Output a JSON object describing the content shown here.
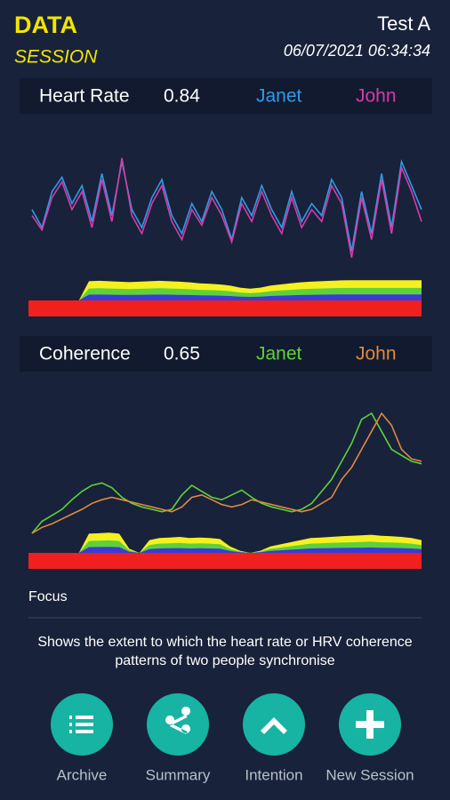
{
  "header": {
    "title": "DATA",
    "subtitle": "SESSION",
    "session": "Test A",
    "datetime": "06/07/2021 06:34:34"
  },
  "panels": [
    {
      "label": "Heart Rate",
      "score": 0.84,
      "series": [
        {
          "name": "Janet",
          "color": "#2f9be8",
          "values": [
            55,
            40,
            70,
            82,
            60,
            75,
            45,
            85,
            50,
            95,
            55,
            40,
            65,
            80,
            50,
            35,
            60,
            45,
            70,
            55,
            30,
            65,
            50,
            75,
            55,
            40,
            70,
            45,
            60,
            50,
            80,
            65,
            20,
            70,
            35,
            85,
            40,
            95,
            75,
            55
          ]
        },
        {
          "name": "John",
          "color": "#d63aa8",
          "values": [
            50,
            38,
            65,
            78,
            55,
            70,
            40,
            80,
            45,
            98,
            50,
            35,
            60,
            75,
            45,
            30,
            55,
            42,
            65,
            50,
            28,
            60,
            45,
            70,
            50,
            35,
            65,
            40,
            55,
            45,
            75,
            60,
            15,
            65,
            30,
            80,
            35,
            90,
            70,
            45
          ]
        }
      ],
      "sync": [
        0,
        0,
        0,
        0,
        0,
        0,
        90,
        92,
        90,
        88,
        86,
        88,
        90,
        92,
        90,
        88,
        85,
        80,
        78,
        75,
        70,
        60,
        55,
        60,
        70,
        75,
        80,
        85,
        88,
        90,
        92,
        94,
        95,
        95,
        95,
        95,
        95,
        95,
        95,
        95
      ]
    },
    {
      "label": "Coherence",
      "score": 0.65,
      "series": [
        {
          "name": "Janet",
          "color": "#5fd13a",
          "values": [
            0,
            10,
            15,
            20,
            28,
            35,
            40,
            42,
            38,
            30,
            25,
            22,
            20,
            18,
            20,
            32,
            40,
            35,
            30,
            28,
            32,
            36,
            30,
            25,
            22,
            20,
            18,
            20,
            25,
            35,
            45,
            60,
            75,
            95,
            100,
            85,
            70,
            65,
            60,
            58
          ]
        },
        {
          "name": "John",
          "color": "#e08a3c",
          "values": [
            0,
            5,
            8,
            12,
            16,
            20,
            25,
            28,
            30,
            28,
            26,
            24,
            22,
            20,
            18,
            22,
            30,
            32,
            28,
            24,
            22,
            24,
            28,
            26,
            24,
            22,
            20,
            18,
            20,
            25,
            30,
            45,
            55,
            70,
            85,
            100,
            90,
            70,
            62,
            60
          ]
        }
      ],
      "sync": [
        0,
        0,
        0,
        0,
        0,
        0,
        90,
        92,
        95,
        90,
        20,
        0,
        60,
        70,
        72,
        75,
        70,
        72,
        70,
        65,
        30,
        10,
        0,
        10,
        30,
        40,
        50,
        60,
        70,
        72,
        75,
        78,
        80,
        82,
        85,
        80,
        78,
        75,
        70,
        60
      ]
    }
  ],
  "focus": "Focus",
  "description": "Shows the extent to which the heart rate or HRV coherence patterns of two people synchronise",
  "buttons": [
    "Archive",
    "Summary",
    "Intention",
    "New Session"
  ]
}
